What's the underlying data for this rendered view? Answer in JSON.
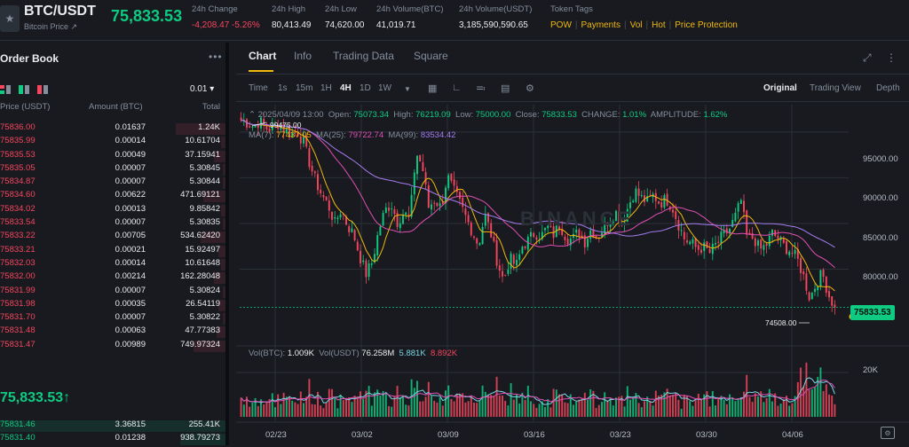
{
  "header": {
    "pair": "BTC/USDT",
    "subtitle": "Bitcoin Price ↗",
    "last_price": "75,833.53",
    "stats": [
      {
        "label": "24h Change",
        "value": "-4,208.47 -5.26%",
        "color": "#f6465d"
      },
      {
        "label": "24h High",
        "value": "80,413.49"
      },
      {
        "label": "24h Low",
        "value": "74,620.00"
      },
      {
        "label": "24h Volume(BTC)",
        "value": "41,019.71"
      },
      {
        "label": "24h Volume(USDT)",
        "value": "3,185,590,590.65"
      }
    ],
    "tags_label": "Token Tags",
    "tags": [
      "POW",
      "Payments",
      "Vol",
      "Hot",
      "Price Protection"
    ]
  },
  "order_book": {
    "title": "Order Book",
    "precision": "0.01 ▾",
    "columns": [
      "Price (USDT)",
      "Amount (BTC)",
      "Total"
    ],
    "asks": [
      {
        "price": "75836.00",
        "amount": "0.01637",
        "total": "1.24K",
        "depth": 0.22
      },
      {
        "price": "75835.99",
        "amount": "0.00014",
        "total": "10.61704",
        "depth": 0.02
      },
      {
        "price": "75835.53",
        "amount": "0.00049",
        "total": "37.15941",
        "depth": 0.05
      },
      {
        "price": "75835.05",
        "amount": "0.00007",
        "total": "5.30845",
        "depth": 0.01
      },
      {
        "price": "75834.87",
        "amount": "0.00007",
        "total": "5.30844",
        "depth": 0.01
      },
      {
        "price": "75834.60",
        "amount": "0.00622",
        "total": "471.69121",
        "depth": 0.1
      },
      {
        "price": "75834.02",
        "amount": "0.00013",
        "total": "9.85842",
        "depth": 0.02
      },
      {
        "price": "75833.54",
        "amount": "0.00007",
        "total": "5.30835",
        "depth": 0.01
      },
      {
        "price": "75833.22",
        "amount": "0.00705",
        "total": "534.62420",
        "depth": 0.11
      },
      {
        "price": "75833.21",
        "amount": "0.00021",
        "total": "15.92497",
        "depth": 0.03
      },
      {
        "price": "75832.03",
        "amount": "0.00014",
        "total": "10.61648",
        "depth": 0.02
      },
      {
        "price": "75832.00",
        "amount": "0.00214",
        "total": "162.28048",
        "depth": 0.05
      },
      {
        "price": "75831.99",
        "amount": "0.00007",
        "total": "5.30824",
        "depth": 0.01
      },
      {
        "price": "75831.98",
        "amount": "0.00035",
        "total": "26.54119",
        "depth": 0.03
      },
      {
        "price": "75831.70",
        "amount": "0.00007",
        "total": "5.30822",
        "depth": 0.01
      },
      {
        "price": "75831.48",
        "amount": "0.00063",
        "total": "47.77383",
        "depth": 0.04
      },
      {
        "price": "75831.47",
        "amount": "0.00989",
        "total": "749.97324",
        "depth": 0.14
      }
    ],
    "mid_price": "75,833.53↑",
    "bids": [
      {
        "price": "75831.46",
        "amount": "3.36815",
        "total": "255.41K",
        "depth": 1.0
      },
      {
        "price": "75831.40",
        "amount": "0.01238",
        "total": "938.79273",
        "depth": 0.2
      }
    ]
  },
  "chart_panel": {
    "tabs": [
      "Chart",
      "Info",
      "Trading Data",
      "Square"
    ],
    "active_tab": "Chart",
    "timeframes": [
      "Time",
      "1s",
      "15m",
      "1H",
      "4H",
      "1D",
      "1W"
    ],
    "active_timeframe": "4H",
    "views": [
      "Original",
      "Trading View",
      "Depth"
    ],
    "active_view": "Original",
    "ohlc": {
      "date": "2025/04/09 13:00",
      "open_label": "Open:",
      "open": "75073.34",
      "high_label": "High:",
      "high": "76219.09",
      "low_label": "Low:",
      "low": "75000.00",
      "close_label": "Close:",
      "close": "75833.53",
      "change_label": "CHANGE:",
      "change": "1.01%",
      "amplitude_label": "AMPLITUDE:",
      "amplitude": "1.62%"
    },
    "ma": {
      "ma7_label": "MA(7):",
      "ma7": "77437.05",
      "ma25_label": "MA(25):",
      "ma25": "79722.74",
      "ma99_label": "MA(99):",
      "ma99": "83534.42"
    },
    "volume": {
      "btc_label": "Vol(BTC):",
      "btc": "1.009K",
      "usdt_label": "Vol(USDT)",
      "usdt": "76.258M",
      "ma1": "5.881K",
      "ma2": "8.892K"
    },
    "watermark": "BINANCE",
    "current_price_tag": "75833.53",
    "high_marker": "99475.00",
    "low_marker": "74508.00"
  },
  "chart_data": {
    "type": "candlestick",
    "y_ticks": [
      95000,
      90000,
      85000,
      80000
    ],
    "y_tick_labels": [
      "95000.00",
      "90000.00",
      "85000.00",
      "80000.00"
    ],
    "ylim": [
      72000,
      97800
    ],
    "x_ticks": [
      "02/23",
      "03/02",
      "03/09",
      "03/16",
      "03/23",
      "03/30",
      "04/06"
    ],
    "volume_tick": "20K",
    "volume_max": 28000,
    "close_path": [
      96300,
      96000,
      95600,
      96200,
      95400,
      95300,
      96000,
      95200,
      94800,
      95100,
      93800,
      91500,
      89500,
      88000,
      86900,
      85000,
      86500,
      84800,
      83800,
      81400,
      79500,
      80800,
      84200,
      86400,
      87200,
      85200,
      86200,
      85500,
      92800,
      91200,
      86800,
      87600,
      86700,
      90200,
      88600,
      87200,
      85600,
      84100,
      82600,
      86000,
      83800,
      80800,
      78700,
      81200,
      80300,
      82500,
      83200,
      84000,
      83600,
      84600,
      83800,
      84900,
      83500,
      83200,
      84200,
      83000,
      84400,
      83400,
      84600,
      85600,
      86200,
      84900,
      87000,
      88600,
      87800,
      87400,
      88100,
      87200,
      87700,
      86800,
      84900,
      83200,
      82900,
      82200,
      82400,
      81800,
      82700,
      83600,
      84200,
      85600,
      87500,
      83200,
      83500,
      82100,
      82600,
      83900,
      83300,
      82400,
      82000,
      81100,
      79200,
      76800,
      78400,
      79600,
      77200,
      75833.53
    ],
    "high_value": 99475.0,
    "low_value": 74508.0,
    "series": [
      {
        "name": "MA(7)",
        "color": "#f0b90b"
      },
      {
        "name": "MA(25)",
        "color": "#e04fb3"
      },
      {
        "name": "MA(99)",
        "color": "#a77cf0"
      }
    ],
    "colors": {
      "up": "#0ecb81",
      "down": "#f6465d",
      "grid": "#2b3139"
    }
  }
}
